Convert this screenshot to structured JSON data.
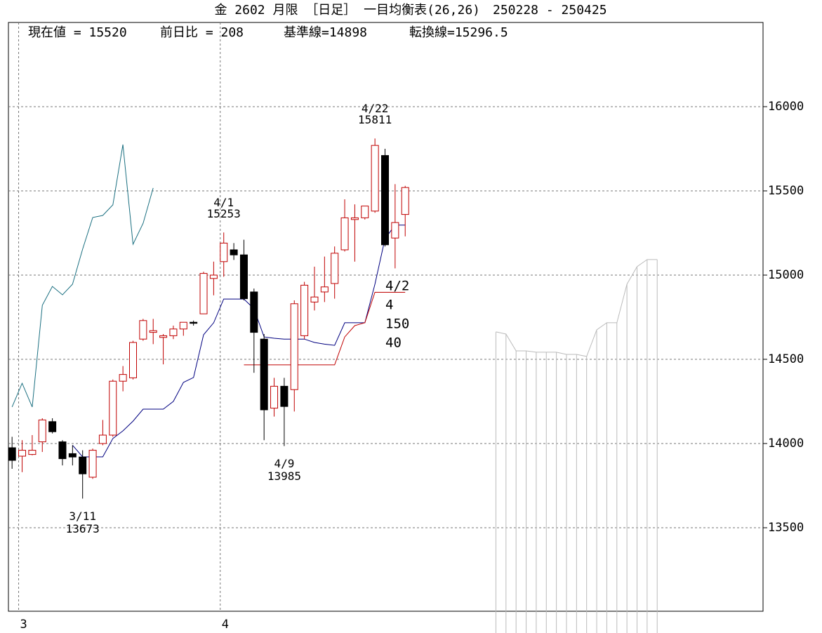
{
  "chart_data": {
    "type": "candlestick",
    "title": "金 2602 月限 ［日足］ 一目均衡表(26,26)　250228 - 250425",
    "info": [
      "現在値 = 15520",
      "前日比 = 208",
      "基準線=14898",
      "転換線=15296.5"
    ],
    "categories": [
      null,
      "3",
      null,
      null,
      null,
      null,
      null,
      null,
      null,
      null,
      null,
      null,
      null,
      null,
      null,
      null,
      null,
      null,
      null,
      null,
      null,
      "4",
      null,
      null,
      null,
      null,
      null,
      null,
      null,
      null,
      null,
      null,
      null,
      null,
      null,
      null,
      null,
      null,
      null,
      null,
      null,
      null,
      null,
      null,
      null,
      null,
      null,
      null,
      null,
      null,
      null,
      null,
      null,
      null,
      null,
      null,
      null,
      null,
      null,
      null,
      null,
      null,
      null,
      null,
      null,
      null,
      null,
      null,
      null,
      null,
      null,
      null,
      null,
      null,
      null
    ],
    "open": [
      13975,
      13925,
      13935,
      14010,
      14130,
      14010,
      13940,
      13920,
      13800,
      14000,
      14050,
      14370,
      14390,
      14620,
      14660,
      14630,
      14640,
      14680,
      14720,
      14770,
      14980,
      15080,
      15150,
      15120,
      14900,
      14620,
      14210,
      14340,
      14320,
      14640,
      14840,
      14900,
      14950,
      15150,
      15330,
      15340,
      15380,
      15710,
      15220,
      15360,
      null,
      null,
      null,
      null,
      null,
      null,
      null,
      null,
      null,
      null,
      null,
      null,
      null,
      null,
      null,
      null,
      null,
      null,
      null,
      null,
      null,
      null,
      null,
      null,
      null,
      null,
      null,
      null,
      null,
      null,
      null,
      null,
      null,
      null,
      null
    ],
    "high": [
      14040,
      14020,
      14050,
      14150,
      14150,
      14020,
      13990,
      13960,
      13970,
      14140,
      14380,
      14460,
      14610,
      14740,
      14740,
      14650,
      14700,
      14720,
      14730,
      15020,
      15080,
      15253,
      15190,
      15210,
      14920,
      14650,
      14390,
      14390,
      14850,
      14960,
      15050,
      15110,
      15170,
      15450,
      15420,
      15410,
      15811,
      15750,
      15540,
      15530,
      null,
      null,
      null,
      null,
      null,
      null,
      null,
      null,
      null,
      null,
      null,
      null,
      null,
      null,
      null,
      null,
      null,
      null,
      null,
      null,
      null,
      null,
      null,
      null,
      null,
      null,
      null,
      null,
      null,
      null,
      null,
      null,
      null,
      null,
      null
    ],
    "low": [
      13850,
      13830,
      13930,
      13950,
      14060,
      13870,
      13870,
      13673,
      13790,
      13990,
      14040,
      14310,
      14380,
      14610,
      14590,
      14470,
      14620,
      14640,
      14700,
      14770,
      14880,
      14990,
      15090,
      14850,
      14420,
      14020,
      14160,
      13985,
      14190,
      14620,
      14790,
      14840,
      14860,
      15140,
      15080,
      15330,
      15370,
      15170,
      15040,
      15230,
      null,
      null,
      null,
      null,
      null,
      null,
      null,
      null,
      null,
      null,
      null,
      null,
      null,
      null,
      null,
      null,
      null,
      null,
      null,
      null,
      null,
      null,
      null,
      null,
      null,
      null,
      null,
      null,
      null,
      null,
      null,
      null,
      null,
      null,
      null
    ],
    "close": [
      13900,
      13960,
      13960,
      14140,
      14070,
      13910,
      13920,
      13820,
      13960,
      14050,
      14370,
      14410,
      14600,
      14730,
      14670,
      14640,
      14680,
      14720,
      14715,
      15010,
      15000,
      15190,
      15120,
      14860,
      14660,
      14200,
      14340,
      14220,
      14830,
      14940,
      14870,
      14930,
      15130,
      15340,
      15340,
      15410,
      15770,
      15180,
      15312,
      15520,
      null,
      null,
      null,
      null,
      null,
      null,
      null,
      null,
      null,
      null,
      null,
      null,
      null,
      null,
      null,
      null,
      null,
      null,
      null,
      null,
      null,
      null,
      null,
      null,
      null,
      null,
      null,
      null,
      null,
      null,
      null,
      null,
      null,
      null,
      null
    ],
    "up_color": "#c00000",
    "down_color": "#000000",
    "series": [
      {
        "color": "#000080",
        "values": [
          null,
          null,
          null,
          null,
          null,
          null,
          13990,
          13921,
          13921,
          13921,
          14030,
          14075,
          14133,
          14204,
          14204,
          14204,
          14250,
          14363,
          14392,
          14646,
          14717,
          14858,
          14858,
          14858,
          14800,
          14633,
          14625,
          14620,
          14620,
          14620,
          14600,
          14590,
          14583,
          14717,
          14717,
          14717,
          14946,
          15217,
          15296.5,
          15296.5,
          null,
          null,
          null,
          null,
          null,
          null,
          null,
          null,
          null,
          null,
          null,
          null,
          null,
          null,
          null,
          null,
          null,
          null,
          null,
          null,
          null,
          null,
          null,
          null,
          null,
          null,
          null,
          null,
          null,
          null,
          null,
          null,
          null,
          null,
          null
        ]
      },
      {
        "color": "#c00000",
        "values": [
          null,
          null,
          null,
          null,
          null,
          null,
          null,
          null,
          null,
          null,
          null,
          null,
          null,
          null,
          null,
          null,
          null,
          null,
          null,
          null,
          null,
          null,
          null,
          14467,
          14467,
          14467,
          14467,
          14467,
          14467,
          14467,
          14467,
          14467,
          14467,
          14633,
          14700,
          14717,
          14898,
          14898,
          14898,
          14898,
          null,
          null,
          null,
          null,
          null,
          null,
          null,
          null,
          null,
          null,
          null,
          null,
          null,
          null,
          null,
          null,
          null,
          null,
          null,
          null,
          null,
          null,
          null,
          null,
          null,
          null,
          null,
          null,
          null,
          null,
          null,
          null,
          null,
          null,
          null
        ]
      },
      {
        "color": "#1a6f80",
        "values": [
          14217,
          14358,
          14217,
          14821,
          14933,
          14883,
          14946,
          15154,
          15342,
          15354,
          15417,
          15775,
          15183,
          15308,
          15517,
          null,
          null,
          null,
          null,
          null,
          null,
          null,
          null,
          null,
          null,
          null,
          null,
          null,
          null,
          null,
          null,
          null,
          null,
          null,
          null,
          null,
          null,
          null,
          null,
          null,
          null,
          null,
          null,
          null,
          null,
          null,
          null,
          null,
          null,
          null,
          null,
          null,
          null,
          null,
          null,
          null,
          null,
          null,
          null,
          null,
          null,
          null,
          null,
          null,
          null,
          null,
          null,
          null,
          null,
          null,
          null,
          null,
          null,
          null,
          null
        ]
      },
      {
        "color": "#bbbbbb",
        "cloud": true,
        "values": [
          null,
          null,
          null,
          null,
          null,
          null,
          null,
          null,
          null,
          null,
          null,
          null,
          null,
          null,
          null,
          null,
          null,
          null,
          null,
          null,
          null,
          null,
          null,
          null,
          null,
          null,
          null,
          null,
          null,
          null,
          null,
          null,
          null,
          null,
          null,
          null,
          null,
          null,
          null,
          null,
          null,
          null,
          null,
          null,
          null,
          null,
          null,
          null,
          14663,
          14650,
          14550,
          14550,
          14542,
          14542,
          14542,
          14529,
          14529,
          14517,
          14675,
          14717,
          14717,
          14946,
          15050,
          15092,
          15092,
          null,
          null,
          null,
          null,
          null,
          null,
          null,
          null,
          null,
          null
        ]
      }
    ],
    "annotations": [
      {
        "date": "4/22",
        "value": 15811
      },
      {
        "date": "4/1",
        "value": 15253
      },
      {
        "date": "4/9",
        "value": 13985
      },
      {
        "date": "3/11",
        "value": 13673
      }
    ],
    "note": [
      "4/2",
      "4",
      "150",
      "40"
    ],
    "ylim": [
      13000,
      16500
    ],
    "yticks": [
      13500,
      14000,
      14500,
      15000,
      15500,
      16000
    ],
    "grid": true
  }
}
